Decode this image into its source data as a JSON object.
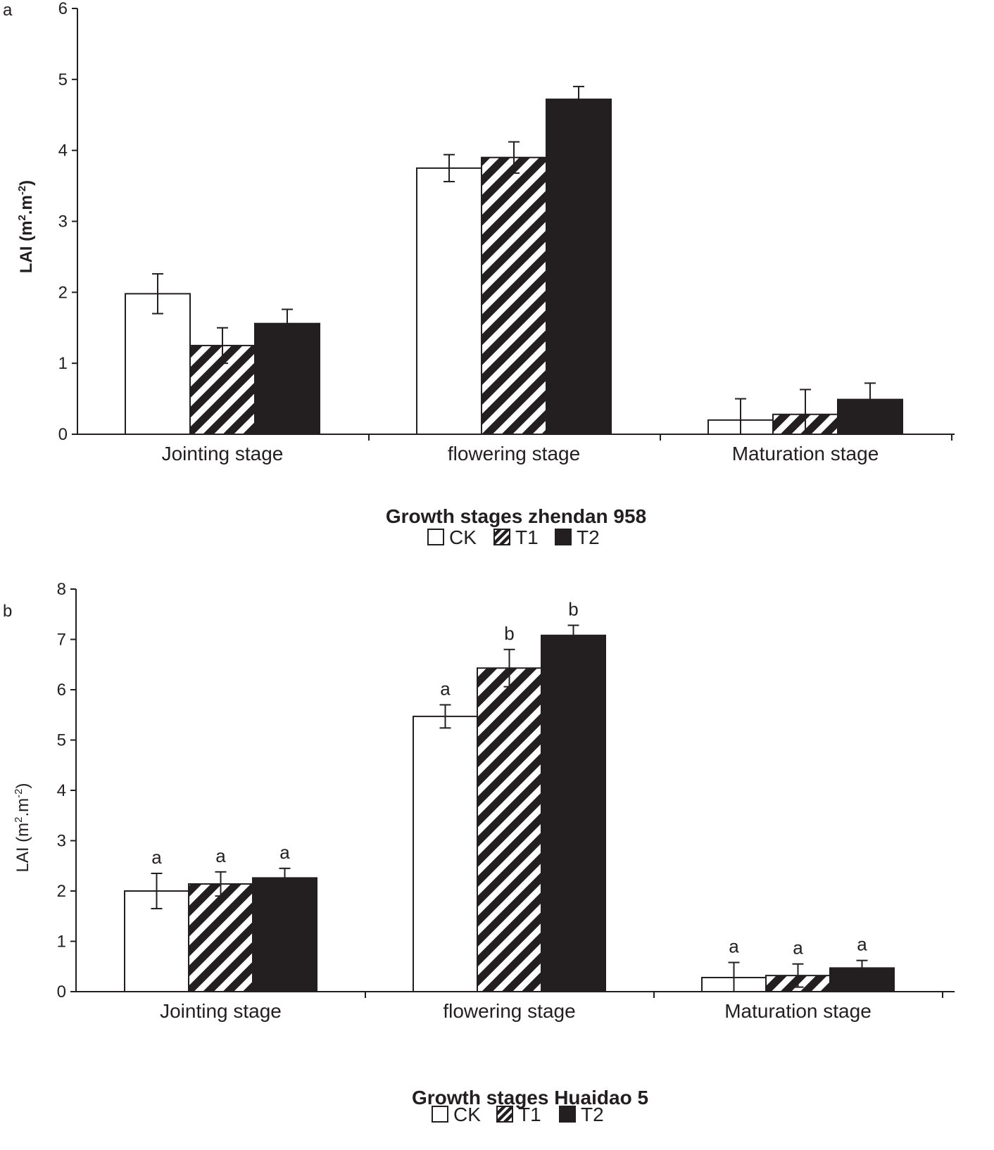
{
  "chart_data": [
    {
      "panel": "a",
      "type": "bar",
      "title": "",
      "xlabel": "Growth stages zhendan 958",
      "ylabel": "LAI (m",
      "ylabel_sup1": "2",
      "ylabel_mid": ".m",
      "ylabel_sup2": "-2",
      "ylabel_end": ")",
      "ylim": [
        0,
        6
      ],
      "yticks": [
        "0",
        "1",
        "2",
        "3",
        "4",
        "5",
        "6"
      ],
      "categories": [
        "Jointing stage",
        "flowering stage",
        "Maturation stage"
      ],
      "series": [
        {
          "name": "CK",
          "values": [
            1.98,
            3.75,
            0.2
          ],
          "errors": [
            0.28,
            0.19,
            0.3
          ],
          "letters": []
        },
        {
          "name": "T1",
          "values": [
            1.25,
            3.9,
            0.28
          ],
          "errors": [
            0.25,
            0.22,
            0.35
          ],
          "letters": []
        },
        {
          "name": "T2",
          "values": [
            1.56,
            4.72,
            0.49
          ],
          "errors": [
            0.2,
            0.18,
            0.23
          ],
          "letters": []
        }
      ],
      "legend": [
        "CK",
        "T1",
        "T2"
      ]
    },
    {
      "panel": "b",
      "type": "bar",
      "title": "",
      "xlabel": "Growth stages Huaidao 5",
      "ylabel": "LAI (m",
      "ylabel_sup1": "2",
      "ylabel_mid": ".m",
      "ylabel_sup2": "-2",
      "ylabel_end": ")",
      "ylim": [
        0,
        8
      ],
      "yticks": [
        "0",
        "1",
        "2",
        "3",
        "4",
        "5",
        "6",
        "7",
        "8"
      ],
      "categories": [
        "Jointing stage",
        "flowering stage",
        "Maturation stage"
      ],
      "series": [
        {
          "name": "CK",
          "values": [
            2.0,
            5.47,
            0.28
          ],
          "errors": [
            0.35,
            0.23,
            0.3
          ],
          "letters": [
            "a",
            "a",
            "a"
          ]
        },
        {
          "name": "T1",
          "values": [
            2.14,
            6.43,
            0.32
          ],
          "errors": [
            0.24,
            0.37,
            0.23
          ],
          "letters": [
            "a",
            "b",
            "a"
          ]
        },
        {
          "name": "T2",
          "values": [
            2.26,
            7.08,
            0.47
          ],
          "errors": [
            0.19,
            0.2,
            0.15
          ],
          "letters": [
            "a",
            "b",
            "a"
          ]
        }
      ],
      "legend": [
        "CK",
        "T1",
        "T2"
      ]
    }
  ]
}
